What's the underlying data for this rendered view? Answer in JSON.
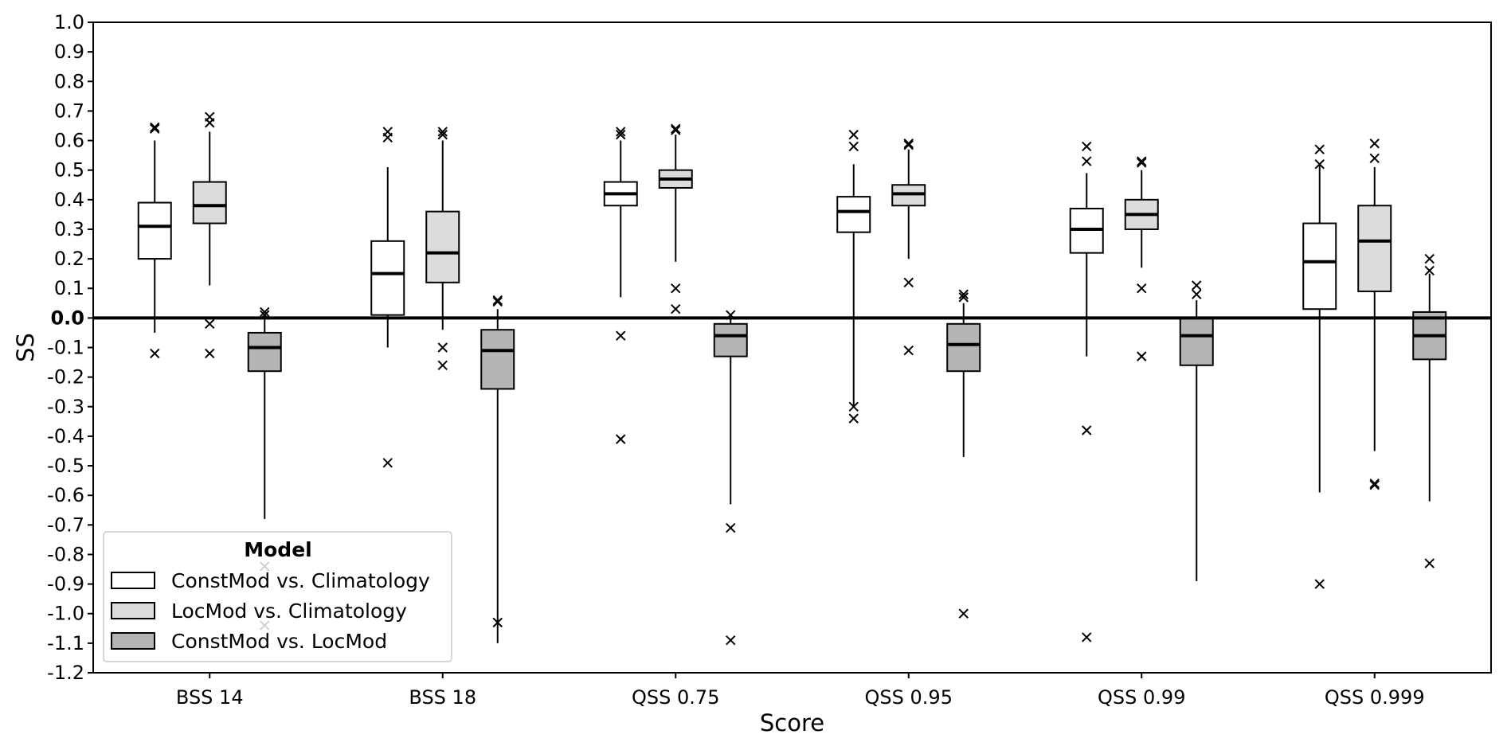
{
  "chart_data": {
    "type": "boxplot",
    "title": "",
    "xlabel": "Score",
    "ylabel": "SS",
    "ylim": [
      -1.2,
      1.0
    ],
    "ytick_step": 0.1,
    "yticks": [
      "1.0",
      "0.9",
      "0.8",
      "0.7",
      "0.6",
      "0.5",
      "0.4",
      "0.3",
      "0.2",
      "0.1",
      "0.0",
      "-0.1",
      "-0.2",
      "-0.3",
      "-0.4",
      "-0.5",
      "-0.6",
      "-0.7",
      "-0.8",
      "-0.9",
      "-1.0",
      "-1.1",
      "-1.2"
    ],
    "zero_line": true,
    "categories": [
      "BSS 14",
      "BSS 18",
      "QSS 0.75",
      "QSS 0.95",
      "QSS 0.99",
      "QSS 0.999"
    ],
    "legend": {
      "title": "Model",
      "location": "lower-left",
      "entries": [
        {
          "label": "ConstMod vs. Climatology",
          "color": "#ffffff"
        },
        {
          "label": "LocMod vs. Climatology",
          "color": "#dcdcdc"
        },
        {
          "label": "ConstMod vs. LocMod",
          "color": "#b4b4b4"
        }
      ]
    },
    "series": [
      {
        "name": "ConstMod vs. Climatology",
        "color": "#ffffff",
        "boxes": [
          {
            "whisker_low": -0.05,
            "q1": 0.2,
            "median": 0.31,
            "q3": 0.39,
            "whisker_high": 0.6,
            "outliers": [
              0.64,
              0.645,
              -0.12
            ]
          },
          {
            "whisker_low": -0.1,
            "q1": 0.01,
            "median": 0.15,
            "q3": 0.26,
            "whisker_high": 0.51,
            "outliers": [
              0.63,
              0.61,
              -0.49
            ]
          },
          {
            "whisker_low": 0.07,
            "q1": 0.38,
            "median": 0.42,
            "q3": 0.46,
            "whisker_high": 0.6,
            "outliers": [
              0.63,
              0.62,
              -0.06,
              -0.41
            ]
          },
          {
            "whisker_low": -0.3,
            "q1": 0.29,
            "median": 0.36,
            "q3": 0.41,
            "whisker_high": 0.52,
            "outliers": [
              0.62,
              0.58,
              -0.3,
              -0.34
            ]
          },
          {
            "whisker_low": -0.13,
            "q1": 0.22,
            "median": 0.3,
            "q3": 0.37,
            "whisker_high": 0.49,
            "outliers": [
              0.58,
              0.53,
              -0.38,
              -1.08
            ]
          },
          {
            "whisker_low": -0.59,
            "q1": 0.03,
            "median": 0.19,
            "q3": 0.32,
            "whisker_high": 0.52,
            "outliers": [
              0.57,
              0.52,
              -0.9
            ]
          }
        ]
      },
      {
        "name": "LocMod vs. Climatology",
        "color": "#dcdcdc",
        "boxes": [
          {
            "whisker_low": 0.11,
            "q1": 0.32,
            "median": 0.38,
            "q3": 0.46,
            "whisker_high": 0.63,
            "outliers": [
              0.68,
              0.66,
              -0.02,
              -0.12
            ]
          },
          {
            "whisker_low": -0.04,
            "q1": 0.12,
            "median": 0.22,
            "q3": 0.36,
            "whisker_high": 0.6,
            "outliers": [
              0.63,
              0.62,
              -0.1,
              -0.16
            ]
          },
          {
            "whisker_low": 0.19,
            "q1": 0.44,
            "median": 0.47,
            "q3": 0.5,
            "whisker_high": 0.62,
            "outliers": [
              0.64,
              0.635,
              0.1,
              0.03
            ]
          },
          {
            "whisker_low": 0.2,
            "q1": 0.38,
            "median": 0.42,
            "q3": 0.45,
            "whisker_high": 0.57,
            "outliers": [
              0.59,
              0.585,
              0.12,
              -0.11
            ]
          },
          {
            "whisker_low": 0.17,
            "q1": 0.3,
            "median": 0.35,
            "q3": 0.4,
            "whisker_high": 0.5,
            "outliers": [
              0.53,
              0.525,
              0.1,
              -0.13
            ]
          },
          {
            "whisker_low": -0.45,
            "q1": 0.09,
            "median": 0.26,
            "q3": 0.38,
            "whisker_high": 0.51,
            "outliers": [
              0.59,
              0.54,
              -0.56,
              -0.565
            ]
          }
        ]
      },
      {
        "name": "ConstMod vs. LocMod",
        "color": "#b4b4b4",
        "boxes": [
          {
            "whisker_low": -0.68,
            "q1": -0.18,
            "median": -0.1,
            "q3": -0.05,
            "whisker_high": 0.0,
            "outliers": [
              0.02,
              0.01,
              -0.84,
              -1.04
            ]
          },
          {
            "whisker_low": -1.1,
            "q1": -0.24,
            "median": -0.11,
            "q3": -0.04,
            "whisker_high": 0.03,
            "outliers": [
              0.06,
              0.055,
              -1.03
            ]
          },
          {
            "whisker_low": -0.63,
            "q1": -0.13,
            "median": -0.06,
            "q3": -0.02,
            "whisker_high": 0.0,
            "outliers": [
              0.01,
              -0.71,
              -1.09
            ]
          },
          {
            "whisker_low": -0.47,
            "q1": -0.18,
            "median": -0.09,
            "q3": -0.02,
            "whisker_high": 0.05,
            "outliers": [
              0.08,
              0.07,
              -1.0
            ]
          },
          {
            "whisker_low": -0.89,
            "q1": -0.16,
            "median": -0.06,
            "q3": 0.0,
            "whisker_high": 0.06,
            "outliers": [
              0.11,
              0.08
            ]
          },
          {
            "whisker_low": -0.62,
            "q1": -0.14,
            "median": -0.06,
            "q3": 0.02,
            "whisker_high": 0.15,
            "outliers": [
              0.2,
              0.16,
              -0.83
            ]
          }
        ]
      }
    ]
  }
}
